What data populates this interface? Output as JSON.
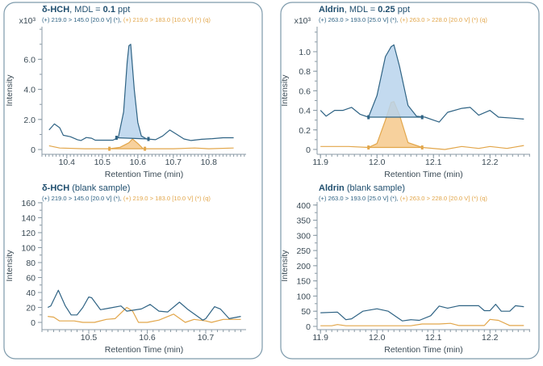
{
  "colors": {
    "quant": "#2f6384",
    "quant_fill": "#b9d4ec",
    "qual": "#e2a64a",
    "qual_fill": "#f6c98c",
    "frame": "#7d9aab"
  },
  "chart_data": [
    {
      "type": "line",
      "title_bold": "δ-HCH",
      "title_mid": ", MDL = ",
      "title_value": "0.1",
      "title_unit": " ppt",
      "subtitle_quant": "(+) 219.0 > 145.0 [20.0 V] (*), ",
      "subtitle_qual": "(+) 219.0 > 183.0 [10.0 V] (*) (q)",
      "multiplier": "x10³",
      "xlabel": "Retention Time (min)",
      "ylabel": "Intensity",
      "xlim": [
        10.33,
        10.905
      ],
      "ylim": [
        -0.32,
        8.17
      ],
      "xticks": [
        10.4,
        10.5,
        10.6,
        10.7,
        10.8
      ],
      "xtick_labels": [
        "10.4",
        "10.5",
        "10.6",
        "10.7",
        "10.8"
      ],
      "yticks": [
        0,
        2,
        4,
        6
      ],
      "ytick_labels": [
        "0",
        "2.0",
        "4.0",
        "6.0"
      ],
      "series": [
        {
          "role": "quant",
          "points": [
            [
              10.35,
              1.3
            ],
            [
              10.365,
              1.7
            ],
            [
              10.38,
              1.45
            ],
            [
              10.39,
              0.95
            ],
            [
              10.41,
              0.85
            ],
            [
              10.43,
              0.65
            ],
            [
              10.44,
              0.6
            ],
            [
              10.455,
              0.8
            ],
            [
              10.47,
              0.75
            ],
            [
              10.48,
              0.62
            ],
            [
              10.53,
              0.62
            ],
            [
              10.545,
              0.8
            ],
            [
              10.56,
              2.5
            ],
            [
              10.57,
              5.8
            ],
            [
              10.575,
              6.9
            ],
            [
              10.58,
              7.0
            ],
            [
              10.59,
              4.0
            ],
            [
              10.6,
              1.8
            ],
            [
              10.61,
              0.9
            ],
            [
              10.625,
              0.7
            ],
            [
              10.65,
              0.65
            ],
            [
              10.67,
              0.9
            ],
            [
              10.69,
              1.3
            ],
            [
              10.71,
              1.0
            ],
            [
              10.73,
              0.7
            ],
            [
              10.75,
              0.6
            ],
            [
              10.78,
              0.68
            ],
            [
              10.81,
              0.72
            ],
            [
              10.84,
              0.78
            ],
            [
              10.87,
              0.78
            ]
          ],
          "peak": [
            [
              10.54,
              0.78
            ],
            [
              10.63,
              0.7
            ]
          ]
        },
        {
          "role": "qual",
          "points": [
            [
              10.35,
              0.25
            ],
            [
              10.38,
              0.1
            ],
            [
              10.45,
              0.05
            ],
            [
              10.52,
              0.05
            ],
            [
              10.55,
              0.15
            ],
            [
              10.575,
              0.45
            ],
            [
              10.585,
              0.7
            ],
            [
              10.6,
              0.4
            ],
            [
              10.615,
              0.05
            ],
            [
              10.7,
              0.05
            ],
            [
              10.76,
              0.1
            ],
            [
              10.8,
              0.05
            ],
            [
              10.87,
              0.1
            ]
          ],
          "peak": [
            [
              10.52,
              0.05
            ],
            [
              10.62,
              0.05
            ]
          ]
        }
      ]
    },
    {
      "type": "line",
      "title_bold": "δ-HCH",
      "title_mid": " (blank sample)",
      "title_value": "",
      "title_unit": "",
      "subtitle_quant": "(+) 219.0 > 145.0 [20.0 V] (*), ",
      "subtitle_qual": "(+) 219.0 > 183.0 [10.0 V] (*) (q)",
      "multiplier": "",
      "xlabel": "Retention Time (min)",
      "ylabel": "Intensity",
      "xlim": [
        10.42,
        10.769
      ],
      "ylim": [
        -9.7,
        161
      ],
      "xticks": [
        10.5,
        10.6,
        10.7
      ],
      "xtick_labels": [
        "10.5",
        "10.6",
        "10.7"
      ],
      "yticks": [
        0,
        20,
        40,
        60,
        80,
        100,
        120,
        140,
        160
      ],
      "ytick_labels": [
        "0",
        "20",
        "40",
        "60",
        "80",
        "100",
        "120",
        "140",
        "160"
      ],
      "series": [
        {
          "role": "quant",
          "points": [
            [
              10.43,
              20
            ],
            [
              10.435,
              22
            ],
            [
              10.448,
              43
            ],
            [
              10.46,
              22
            ],
            [
              10.47,
              10
            ],
            [
              10.48,
              10
            ],
            [
              10.49,
              20
            ],
            [
              10.5,
              34
            ],
            [
              10.505,
              33
            ],
            [
              10.52,
              17
            ],
            [
              10.535,
              19
            ],
            [
              10.555,
              22
            ],
            [
              10.565,
              15
            ],
            [
              10.59,
              18
            ],
            [
              10.605,
              24
            ],
            [
              10.62,
              15
            ],
            [
              10.635,
              14
            ],
            [
              10.655,
              27
            ],
            [
              10.67,
              17
            ],
            [
              10.695,
              3
            ],
            [
              10.7,
              5
            ],
            [
              10.715,
              21
            ],
            [
              10.725,
              18
            ],
            [
              10.74,
              5
            ],
            [
              10.76,
              8
            ]
          ]
        },
        {
          "role": "qual",
          "points": [
            [
              10.43,
              8
            ],
            [
              10.44,
              7
            ],
            [
              10.45,
              2
            ],
            [
              10.475,
              2
            ],
            [
              10.49,
              0
            ],
            [
              10.51,
              0
            ],
            [
              10.53,
              4
            ],
            [
              10.545,
              5
            ],
            [
              10.565,
              20
            ],
            [
              10.575,
              15
            ],
            [
              10.585,
              0
            ],
            [
              10.6,
              0
            ],
            [
              10.62,
              3
            ],
            [
              10.645,
              11
            ],
            [
              10.665,
              0
            ],
            [
              10.68,
              4
            ],
            [
              10.7,
              2
            ],
            [
              10.71,
              0
            ],
            [
              10.73,
              4
            ],
            [
              10.76,
              4
            ]
          ]
        }
      ]
    },
    {
      "type": "line",
      "title_bold": "Aldrin",
      "title_mid": ", MDL = ",
      "title_value": "0.25",
      "title_unit": " ppt",
      "subtitle_quant": "(+) 263.0 > 193.0 [25.0 V] (*), ",
      "subtitle_qual": "(+) 263.0 > 228.0 [20.0 V] (*) (q)",
      "multiplier": "x10³",
      "xlabel": "Retention Time (min)",
      "ylabel": "Intensity",
      "xlim": [
        11.894,
        12.271
      ],
      "ylim": [
        -0.05,
        1.256
      ],
      "xticks": [
        11.9,
        12.0,
        12.1,
        12.2
      ],
      "xtick_labels": [
        "11.9",
        "12.0",
        "12.1",
        "12.2"
      ],
      "yticks": [
        0,
        0.2,
        0.4,
        0.6,
        0.8,
        1.0
      ],
      "ytick_labels": [
        "0",
        "0.2",
        "0.4",
        "0.6",
        "0.8",
        "1.0"
      ],
      "series": [
        {
          "role": "quant",
          "points": [
            [
              11.9,
              0.4
            ],
            [
              11.91,
              0.34
            ],
            [
              11.925,
              0.4
            ],
            [
              11.94,
              0.4
            ],
            [
              11.955,
              0.43
            ],
            [
              11.97,
              0.36
            ],
            [
              11.985,
              0.33
            ],
            [
              12.0,
              0.55
            ],
            [
              12.015,
              0.95
            ],
            [
              12.025,
              1.05
            ],
            [
              12.03,
              1.07
            ],
            [
              12.04,
              0.85
            ],
            [
              12.055,
              0.45
            ],
            [
              12.07,
              0.34
            ],
            [
              12.085,
              0.33
            ],
            [
              12.1,
              0.3
            ],
            [
              12.11,
              0.28
            ],
            [
              12.125,
              0.38
            ],
            [
              12.15,
              0.42
            ],
            [
              12.165,
              0.43
            ],
            [
              12.18,
              0.35
            ],
            [
              12.2,
              0.4
            ],
            [
              12.215,
              0.33
            ],
            [
              12.24,
              0.32
            ],
            [
              12.26,
              0.31
            ]
          ],
          "peak": [
            [
              11.985,
              0.33
            ],
            [
              12.08,
              0.33
            ]
          ]
        },
        {
          "role": "qual",
          "points": [
            [
              11.9,
              0.03
            ],
            [
              11.95,
              0.03
            ],
            [
              11.985,
              0.02
            ],
            [
              12.0,
              0.06
            ],
            [
              12.015,
              0.3
            ],
            [
              12.025,
              0.48
            ],
            [
              12.03,
              0.49
            ],
            [
              12.04,
              0.35
            ],
            [
              12.055,
              0.07
            ],
            [
              12.08,
              0.02
            ],
            [
              12.12,
              0.0
            ],
            [
              12.15,
              0.03
            ],
            [
              12.18,
              0.01
            ],
            [
              12.2,
              0.03
            ],
            [
              12.23,
              0.01
            ],
            [
              12.26,
              0.04
            ]
          ],
          "peak": [
            [
              11.985,
              0.02
            ],
            [
              12.08,
              0.02
            ]
          ]
        }
      ]
    },
    {
      "type": "line",
      "title_bold": "Aldrin",
      "title_mid": " (blank sample)",
      "title_value": "",
      "title_unit": "",
      "subtitle_quant": "(+) 263.0 > 193.0 [25.0 V] (*), ",
      "subtitle_qual": "(+) 263.0 > 228.0 [20.0 V] (*) (q)",
      "multiplier": "",
      "xlabel": "Retention Time (min)",
      "ylabel": "Intensity",
      "xlim": [
        11.894,
        12.271
      ],
      "ylim": [
        -10.7,
        410
      ],
      "xticks": [
        11.9,
        12.0,
        12.1,
        12.2
      ],
      "xtick_labels": [
        "11.9",
        "12.0",
        "12.1",
        "12.2"
      ],
      "yticks": [
        0,
        50,
        100,
        150,
        200,
        250,
        300,
        350,
        400
      ],
      "ytick_labels": [
        "0",
        "50",
        "100",
        "150",
        "200",
        "250",
        "300",
        "350",
        "400"
      ],
      "series": [
        {
          "role": "quant",
          "points": [
            [
              11.9,
              45
            ],
            [
              11.93,
              47
            ],
            [
              11.945,
              22
            ],
            [
              11.955,
              25
            ],
            [
              11.975,
              50
            ],
            [
              12.0,
              58
            ],
            [
              12.02,
              50
            ],
            [
              12.045,
              18
            ],
            [
              12.06,
              22
            ],
            [
              12.075,
              20
            ],
            [
              12.095,
              35
            ],
            [
              12.11,
              67
            ],
            [
              12.125,
              60
            ],
            [
              12.145,
              68
            ],
            [
              12.17,
              68
            ],
            [
              12.18,
              68
            ],
            [
              12.19,
              52
            ],
            [
              12.2,
              52
            ],
            [
              12.21,
              73
            ],
            [
              12.22,
              50
            ],
            [
              12.235,
              50
            ],
            [
              12.245,
              68
            ],
            [
              12.26,
              65
            ]
          ]
        },
        {
          "role": "qual",
          "points": [
            [
              11.9,
              2
            ],
            [
              11.92,
              2
            ],
            [
              11.93,
              6
            ],
            [
              11.945,
              2
            ],
            [
              12.06,
              2
            ],
            [
              12.08,
              8
            ],
            [
              12.11,
              8
            ],
            [
              12.13,
              10
            ],
            [
              12.145,
              3
            ],
            [
              12.19,
              3
            ],
            [
              12.2,
              23
            ],
            [
              12.215,
              20
            ],
            [
              12.235,
              3
            ],
            [
              12.26,
              3
            ]
          ]
        }
      ]
    }
  ]
}
